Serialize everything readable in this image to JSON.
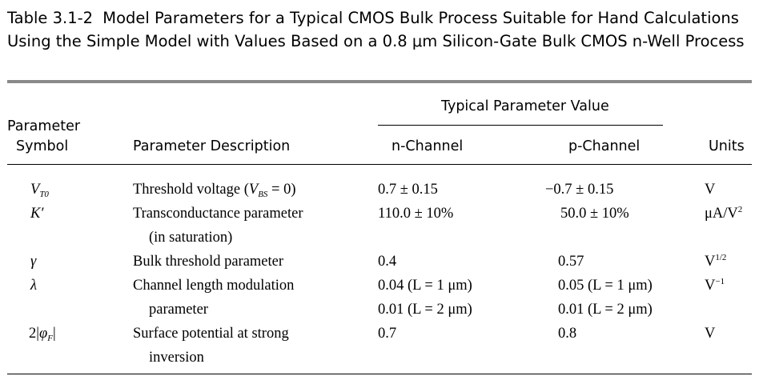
{
  "caption": {
    "number": "Table 3.1-2",
    "text": "Model Parameters for a Typical CMOS Bulk Process Suitable for Hand Calculations Using the Simple Model with Values Based on a 0.8 μm Silicon-Gate Bulk CMOS n-Well Process"
  },
  "header": {
    "group": "Typical Parameter Value",
    "symbol_line1": "Parameter",
    "symbol_line2": "Symbol",
    "description": "Parameter Description",
    "n_channel": "n-Channel",
    "p_channel": "p-Channel",
    "units": "Units"
  },
  "rows": [
    {
      "symbol": "V",
      "symbol_sub": "T0",
      "desc_before": "Threshold voltage (",
      "desc_var": "V",
      "desc_var_sub": "BS",
      "desc_after": " = 0)",
      "n_value": "0.7 ± 0.15",
      "p_value": "−0.7 ± 0.15",
      "unit": "V"
    },
    {
      "symbol": "K′",
      "desc_line1": "Transconductance parameter",
      "desc_line2": "(in saturation)",
      "n_value": "110.0 ± 10%",
      "p_value": "50.0 ± 10%",
      "unit": "μA/V",
      "unit_sup": "2"
    },
    {
      "symbol": "γ",
      "desc_line1": "Bulk threshold parameter",
      "n_value": "0.4",
      "p_value": "0.57",
      "unit": "V",
      "unit_sup": "1/2"
    },
    {
      "symbol": "λ",
      "desc_line1": "Channel length modulation",
      "desc_line2": "parameter",
      "n_value_1": "0.04 (L = 1 μm)",
      "n_value_2": "0.01 (L = 2 μm)",
      "p_value_1": "0.05 (L = 1 μm)",
      "p_value_2": "0.01 (L = 2 μm)",
      "unit": "V",
      "unit_sup": "−1"
    },
    {
      "symbol_prefix": "2|",
      "symbol": "φ",
      "symbol_sub": "F",
      "symbol_suffix": "|",
      "desc_line1": "Surface potential at strong",
      "desc_line2": "inversion",
      "n_value": "0.7",
      "p_value": "0.8",
      "unit": "V"
    }
  ]
}
